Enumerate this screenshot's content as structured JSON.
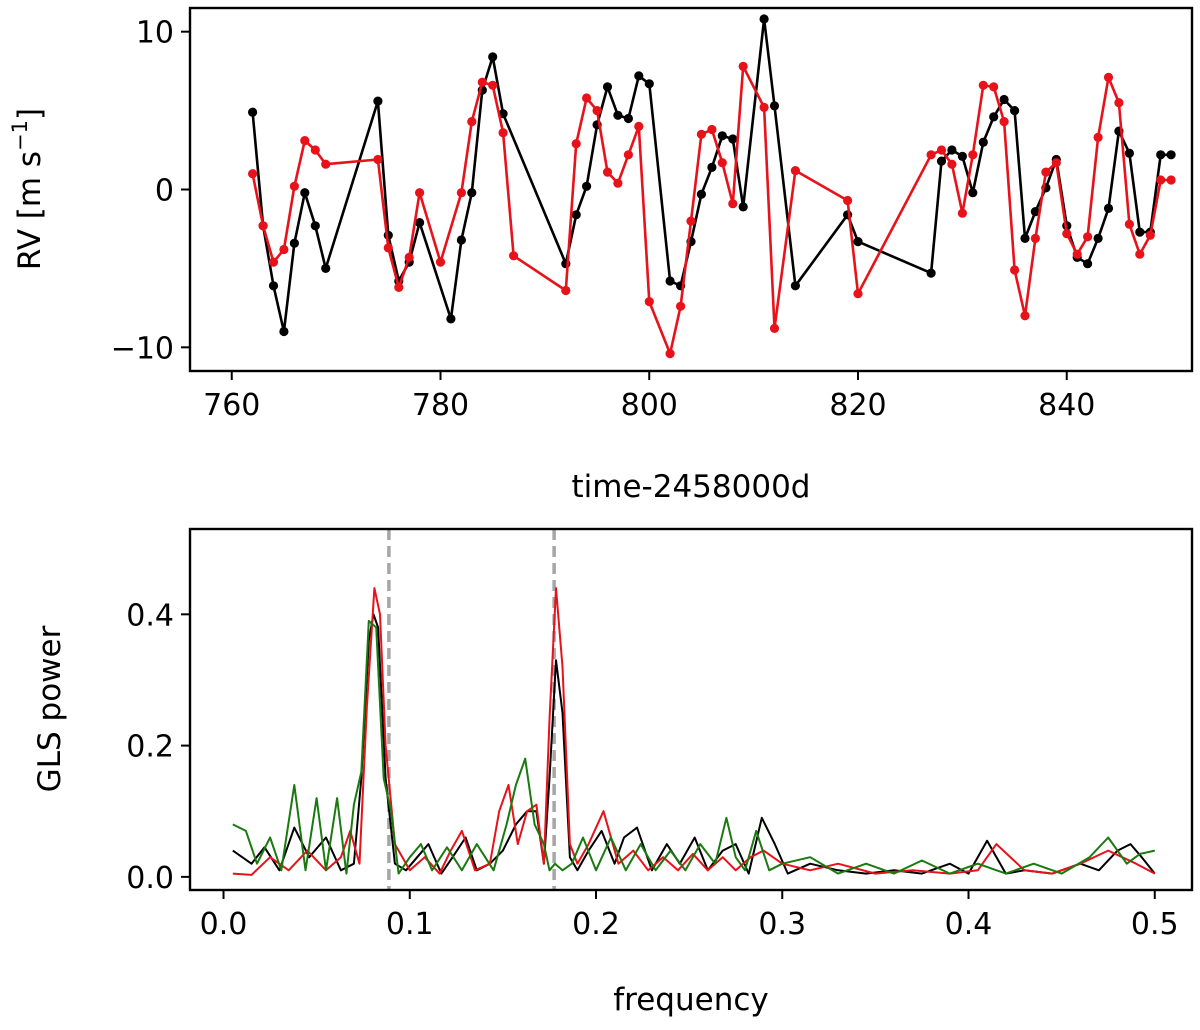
{
  "chart_data": [
    {
      "type": "line",
      "xlabel": "time-2458000d",
      "ylabel_text": "RV [m s",
      "ylabel_sup": "−1",
      "ylabel_close": "]",
      "xlim": [
        756,
        852
      ],
      "ylim": [
        -11.5,
        11.5
      ],
      "xticks": [
        760,
        780,
        800,
        820,
        840
      ],
      "xtick_labels": [
        "760",
        "780",
        "800",
        "820",
        "840"
      ],
      "yticks": [
        10,
        0,
        -10
      ],
      "ytick_labels": [
        "10",
        "0",
        "−10"
      ],
      "markers": true,
      "series": [
        {
          "color": "#000000",
          "x": [
            762,
            763,
            764,
            765,
            766,
            767,
            768,
            769,
            774,
            775,
            776,
            777,
            778,
            781,
            782,
            783,
            784,
            785,
            786,
            792,
            793,
            794,
            795,
            796,
            797,
            798,
            799,
            800,
            802,
            803,
            804,
            805,
            806,
            807,
            808,
            809,
            811,
            812,
            814,
            819,
            820,
            827,
            828,
            829,
            830,
            831,
            832,
            833,
            834,
            835,
            836,
            837,
            838,
            839,
            840,
            841,
            842,
            843,
            844,
            845,
            846,
            847,
            848,
            849,
            850
          ],
          "y": [
            4.9,
            -2.3,
            -6.1,
            -9.0,
            -3.4,
            -0.2,
            -2.3,
            -5.0,
            5.6,
            -2.9,
            -5.8,
            -4.6,
            -2.1,
            -8.2,
            -3.2,
            -0.2,
            6.3,
            8.4,
            4.8,
            -4.7,
            -1.6,
            0.2,
            4.1,
            6.5,
            4.7,
            4.5,
            7.2,
            6.7,
            -5.8,
            -6.1,
            -3.3,
            -0.3,
            1.4,
            3.4,
            3.2,
            -1.1,
            10.8,
            5.3,
            -6.1,
            -1.6,
            -3.3,
            -5.3,
            1.8,
            2.5,
            2.1,
            -0.2,
            3.0,
            4.6,
            5.7,
            5.0,
            -3.1,
            -1.4,
            0.1,
            1.9,
            -2.3,
            -4.3,
            -4.7,
            -3.1,
            -1.2,
            3.7,
            2.3,
            -2.7,
            -2.7,
            2.2,
            2.2
          ]
        },
        {
          "color": "#e8121a",
          "x": [
            762,
            763,
            764,
            765,
            766,
            767,
            768,
            769,
            774,
            775,
            776,
            777,
            778,
            780,
            782,
            783,
            784,
            785,
            786,
            787,
            792,
            793,
            794,
            795,
            796,
            797,
            798,
            799,
            800,
            802,
            803,
            804,
            805,
            806,
            807,
            808,
            809,
            811,
            812,
            814,
            819,
            820,
            827,
            828,
            829,
            830,
            831,
            832,
            833,
            834,
            835,
            836,
            837,
            838,
            839,
            840,
            841,
            842,
            843,
            844,
            845,
            846,
            847,
            848,
            849,
            850
          ],
          "y": [
            1.0,
            -2.3,
            -4.6,
            -3.8,
            0.2,
            3.1,
            2.5,
            1.6,
            1.9,
            -3.7,
            -6.2,
            -4.3,
            -0.2,
            -4.6,
            -0.2,
            4.3,
            6.8,
            6.6,
            3.6,
            -4.2,
            -6.4,
            2.9,
            5.8,
            5.0,
            1.1,
            0.4,
            2.2,
            4.0,
            -7.1,
            -10.4,
            -7.4,
            -2.0,
            3.5,
            3.8,
            1.7,
            -0.9,
            7.8,
            5.2,
            -8.8,
            1.2,
            -0.7,
            -6.6,
            2.2,
            2.5,
            1.6,
            -1.5,
            2.2,
            6.6,
            6.5,
            4.3,
            -5.1,
            -8.0,
            -3.1,
            1.1,
            1.7,
            -2.8,
            -4.1,
            -3.0,
            3.3,
            7.1,
            5.5,
            -2.2,
            -4.1,
            -2.9,
            0.6,
            0.6
          ]
        }
      ]
    },
    {
      "type": "line",
      "xlabel": "frequency",
      "ylabel": "GLS power",
      "xlim": [
        -0.018,
        0.52
      ],
      "ylim": [
        -0.02,
        0.53
      ],
      "xticks": [
        0.0,
        0.1,
        0.2,
        0.3,
        0.4,
        0.5
      ],
      "xtick_labels": [
        "0.0",
        "0.1",
        "0.2",
        "0.3",
        "0.4",
        "0.5"
      ],
      "yticks": [
        0.0,
        0.2,
        0.4
      ],
      "ytick_labels": [
        "0.0",
        "0.2",
        "0.4"
      ],
      "vlines": [
        0.0888,
        0.1775
      ],
      "vline_color": "#a6a6a6",
      "series": [
        {
          "color": "#000000",
          "x": [
            0.005,
            0.015,
            0.022,
            0.03,
            0.038,
            0.046,
            0.055,
            0.063,
            0.07,
            0.074,
            0.078,
            0.0805,
            0.083,
            0.087,
            0.092,
            0.098,
            0.104,
            0.11,
            0.117,
            0.123,
            0.13,
            0.136,
            0.143,
            0.15,
            0.157,
            0.163,
            0.168,
            0.172,
            0.175,
            0.1785,
            0.182,
            0.186,
            0.19,
            0.196,
            0.203,
            0.21,
            0.215,
            0.222,
            0.23,
            0.238,
            0.245,
            0.253,
            0.26,
            0.268,
            0.275,
            0.282,
            0.289,
            0.296,
            0.303,
            0.315,
            0.33,
            0.345,
            0.36,
            0.375,
            0.39,
            0.4,
            0.41,
            0.42,
            0.43,
            0.445,
            0.46,
            0.47,
            0.48,
            0.487,
            0.493,
            0.5
          ],
          "y": [
            0.04,
            0.02,
            0.045,
            0.01,
            0.075,
            0.03,
            0.06,
            0.01,
            0.02,
            0.15,
            0.36,
            0.4,
            0.38,
            0.15,
            0.02,
            0.01,
            0.03,
            0.05,
            0.005,
            0.03,
            0.06,
            0.01,
            0.02,
            0.04,
            0.08,
            0.1,
            0.1,
            0.02,
            0.15,
            0.33,
            0.25,
            0.03,
            0.01,
            0.04,
            0.07,
            0.02,
            0.06,
            0.075,
            0.01,
            0.05,
            0.02,
            0.06,
            0.01,
            0.04,
            0.05,
            0.005,
            0.09,
            0.05,
            0.005,
            0.02,
            0.01,
            0.005,
            0.01,
            0.005,
            0.02,
            0.005,
            0.055,
            0.005,
            0.01,
            0.005,
            0.02,
            0.01,
            0.04,
            0.05,
            0.03,
            0.005
          ]
        },
        {
          "color": "#e8121a",
          "x": [
            0.005,
            0.015,
            0.025,
            0.035,
            0.045,
            0.055,
            0.063,
            0.068,
            0.073,
            0.077,
            0.081,
            0.084,
            0.087,
            0.092,
            0.1,
            0.108,
            0.116,
            0.122,
            0.128,
            0.135,
            0.143,
            0.148,
            0.153,
            0.158,
            0.163,
            0.168,
            0.172,
            0.175,
            0.1785,
            0.182,
            0.186,
            0.19,
            0.196,
            0.204,
            0.212,
            0.22,
            0.228,
            0.236,
            0.244,
            0.252,
            0.26,
            0.268,
            0.275,
            0.283,
            0.29,
            0.3,
            0.315,
            0.33,
            0.35,
            0.37,
            0.39,
            0.405,
            0.415,
            0.43,
            0.445,
            0.46,
            0.475,
            0.49,
            0.5
          ],
          "y": [
            0.005,
            0.003,
            0.03,
            0.01,
            0.04,
            0.01,
            0.03,
            0.07,
            0.02,
            0.26,
            0.44,
            0.4,
            0.2,
            0.05,
            0.01,
            0.03,
            0.005,
            0.04,
            0.07,
            0.01,
            0.02,
            0.1,
            0.14,
            0.05,
            0.1,
            0.11,
            0.02,
            0.24,
            0.44,
            0.32,
            0.05,
            0.02,
            0.05,
            0.1,
            0.02,
            0.04,
            0.01,
            0.03,
            0.01,
            0.035,
            0.01,
            0.03,
            0.01,
            0.03,
            0.04,
            0.02,
            0.01,
            0.02,
            0.005,
            0.01,
            0.005,
            0.01,
            0.05,
            0.01,
            0.005,
            0.02,
            0.04,
            0.02,
            0.005
          ]
        },
        {
          "color": "#1a7a10",
          "x": [
            0.005,
            0.012,
            0.018,
            0.025,
            0.031,
            0.038,
            0.044,
            0.05,
            0.055,
            0.061,
            0.066,
            0.07,
            0.074,
            0.078,
            0.082,
            0.086,
            0.09,
            0.094,
            0.1,
            0.106,
            0.112,
            0.12,
            0.128,
            0.136,
            0.145,
            0.152,
            0.157,
            0.162,
            0.167,
            0.172,
            0.175,
            0.178,
            0.182,
            0.187,
            0.193,
            0.2,
            0.208,
            0.216,
            0.224,
            0.232,
            0.24,
            0.248,
            0.256,
            0.264,
            0.27,
            0.275,
            0.28,
            0.286,
            0.293,
            0.3,
            0.315,
            0.33,
            0.345,
            0.36,
            0.375,
            0.39,
            0.405,
            0.42,
            0.435,
            0.45,
            0.465,
            0.475,
            0.485,
            0.492,
            0.5
          ],
          "y": [
            0.08,
            0.07,
            0.02,
            0.06,
            0.01,
            0.14,
            0.01,
            0.12,
            0.01,
            0.12,
            0.005,
            0.11,
            0.16,
            0.39,
            0.38,
            0.15,
            0.1,
            0.005,
            0.03,
            0.05,
            0.01,
            0.045,
            0.01,
            0.05,
            0.01,
            0.08,
            0.14,
            0.18,
            0.08,
            0.05,
            0.01,
            0.02,
            0.01,
            0.02,
            0.06,
            0.01,
            0.06,
            0.01,
            0.05,
            0.01,
            0.04,
            0.01,
            0.05,
            0.02,
            0.09,
            0.03,
            0.01,
            0.07,
            0.01,
            0.02,
            0.03,
            0.005,
            0.02,
            0.005,
            0.025,
            0.005,
            0.02,
            0.005,
            0.02,
            0.005,
            0.03,
            0.06,
            0.02,
            0.035,
            0.04
          ]
        }
      ]
    }
  ]
}
